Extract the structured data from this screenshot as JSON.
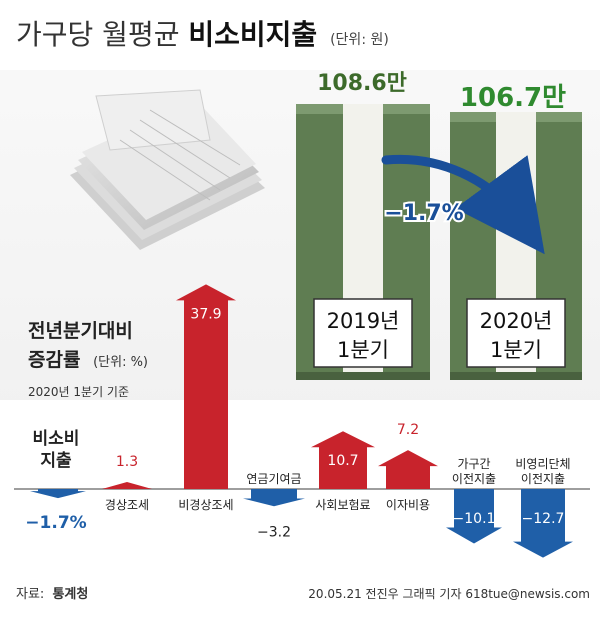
{
  "title": {
    "normal": "가구당 월평균",
    "bold": "비소비지출",
    "unit": "(단위: 원)"
  },
  "comparison": {
    "bars": [
      {
        "value": "108.6만",
        "period_line1": "2019년",
        "period_line2": "1분기"
      },
      {
        "value": "106.7만",
        "period_line1": "2020년",
        "period_line2": "1분기"
      }
    ],
    "change": "−1.7%"
  },
  "yoy_section": {
    "title_line1": "전년분기대비",
    "title_line2": "증감률",
    "unit": "(단위: %)",
    "basis": "2020년 1분기 기준"
  },
  "chart_data": [
    {
      "type": "bar",
      "categories": [
        "2019년 1분기",
        "2020년 1분기"
      ],
      "values": [
        108.6,
        106.7
      ],
      "unit": "만원",
      "change_label": "−1.7%"
    },
    {
      "type": "bar",
      "categories": [
        "비소비 지출",
        "경상조세",
        "비경상조세",
        "연금기여금",
        "사회보험료",
        "이자비용",
        "가구간 이전지출",
        "비영리단체 이전지출"
      ],
      "values": [
        -1.7,
        1.3,
        37.9,
        -3.2,
        10.7,
        7.2,
        -10.1,
        -12.7
      ],
      "unit": "%"
    }
  ],
  "categories_display": [
    {
      "name_lines": [
        "비소비",
        "지출"
      ],
      "value_label": "−1.7%"
    },
    {
      "name_lines": [
        "경상조세"
      ],
      "value_label": "1.3"
    },
    {
      "name_lines": [
        "비경상조세"
      ],
      "value_label": "37.9"
    },
    {
      "name_lines": [
        "연금기여금"
      ],
      "value_label": "−3.2"
    },
    {
      "name_lines": [
        "사회보험료"
      ],
      "value_label": "10.7"
    },
    {
      "name_lines": [
        "이자비용"
      ],
      "value_label": "7.2"
    },
    {
      "name_lines": [
        "가구간",
        "이전지출"
      ],
      "value_label": "−10.1"
    },
    {
      "name_lines": [
        "비영리단체",
        "이전지출"
      ],
      "value_label": "−12.7"
    }
  ],
  "colors": {
    "positive": "#c8232c",
    "negative": "#1f5fa8",
    "baseline": "#9e9e9e",
    "money_green": "#5f7d52",
    "money_band": "#f2f2ec",
    "title_dark": "#222222"
  },
  "footer": {
    "source_label": "자료:",
    "source": "통계청",
    "credit": "20.05.21  전진우  그래픽  기자  618tue@newsis.com"
  }
}
